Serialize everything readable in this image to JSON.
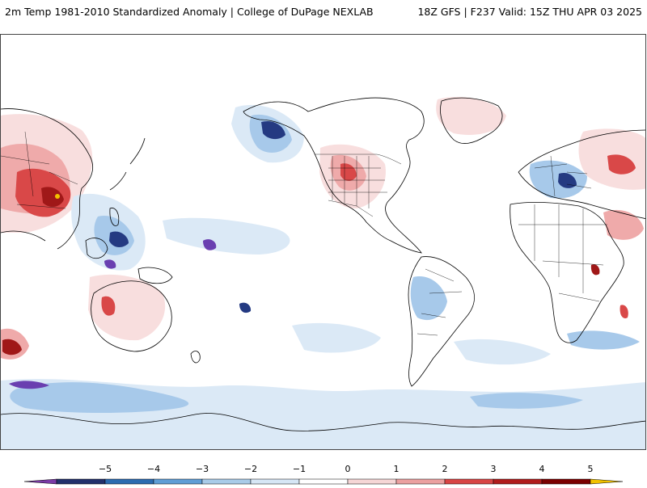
{
  "header": {
    "left_title": "2m Temp 1981-2010 Standardized Anomaly | College of DuPage NEXLAB",
    "right_title": "18Z GFS | F237 Valid: 15Z THU APR 03 2025"
  },
  "colorbar": {
    "tick_labels": [
      "−5",
      "−4",
      "−3",
      "−2",
      "−1",
      "0",
      "1",
      "2",
      "3",
      "4",
      "5"
    ],
    "colors": [
      "#7b3aa6",
      "#22306b",
      "#2c6bb0",
      "#5f9ed6",
      "#a9cbe8",
      "#d6e6f5",
      "#ffffff",
      "#f6d6d6",
      "#eba0a0",
      "#d84444",
      "#b01c1c",
      "#7a0000",
      "#f2c200"
    ]
  },
  "anomaly_colors": {
    "light_blue": "#dbe9f6",
    "mid_blue": "#a7c9ea",
    "strong_blue": "#5a98d6",
    "deep_blue": "#243a82",
    "purple": "#6a3fb0",
    "light_red": "#f8dede",
    "mid_red": "#efaaaa",
    "strong_red": "#d94848",
    "deep_red": "#a01818",
    "yellow": "#f2c200"
  }
}
